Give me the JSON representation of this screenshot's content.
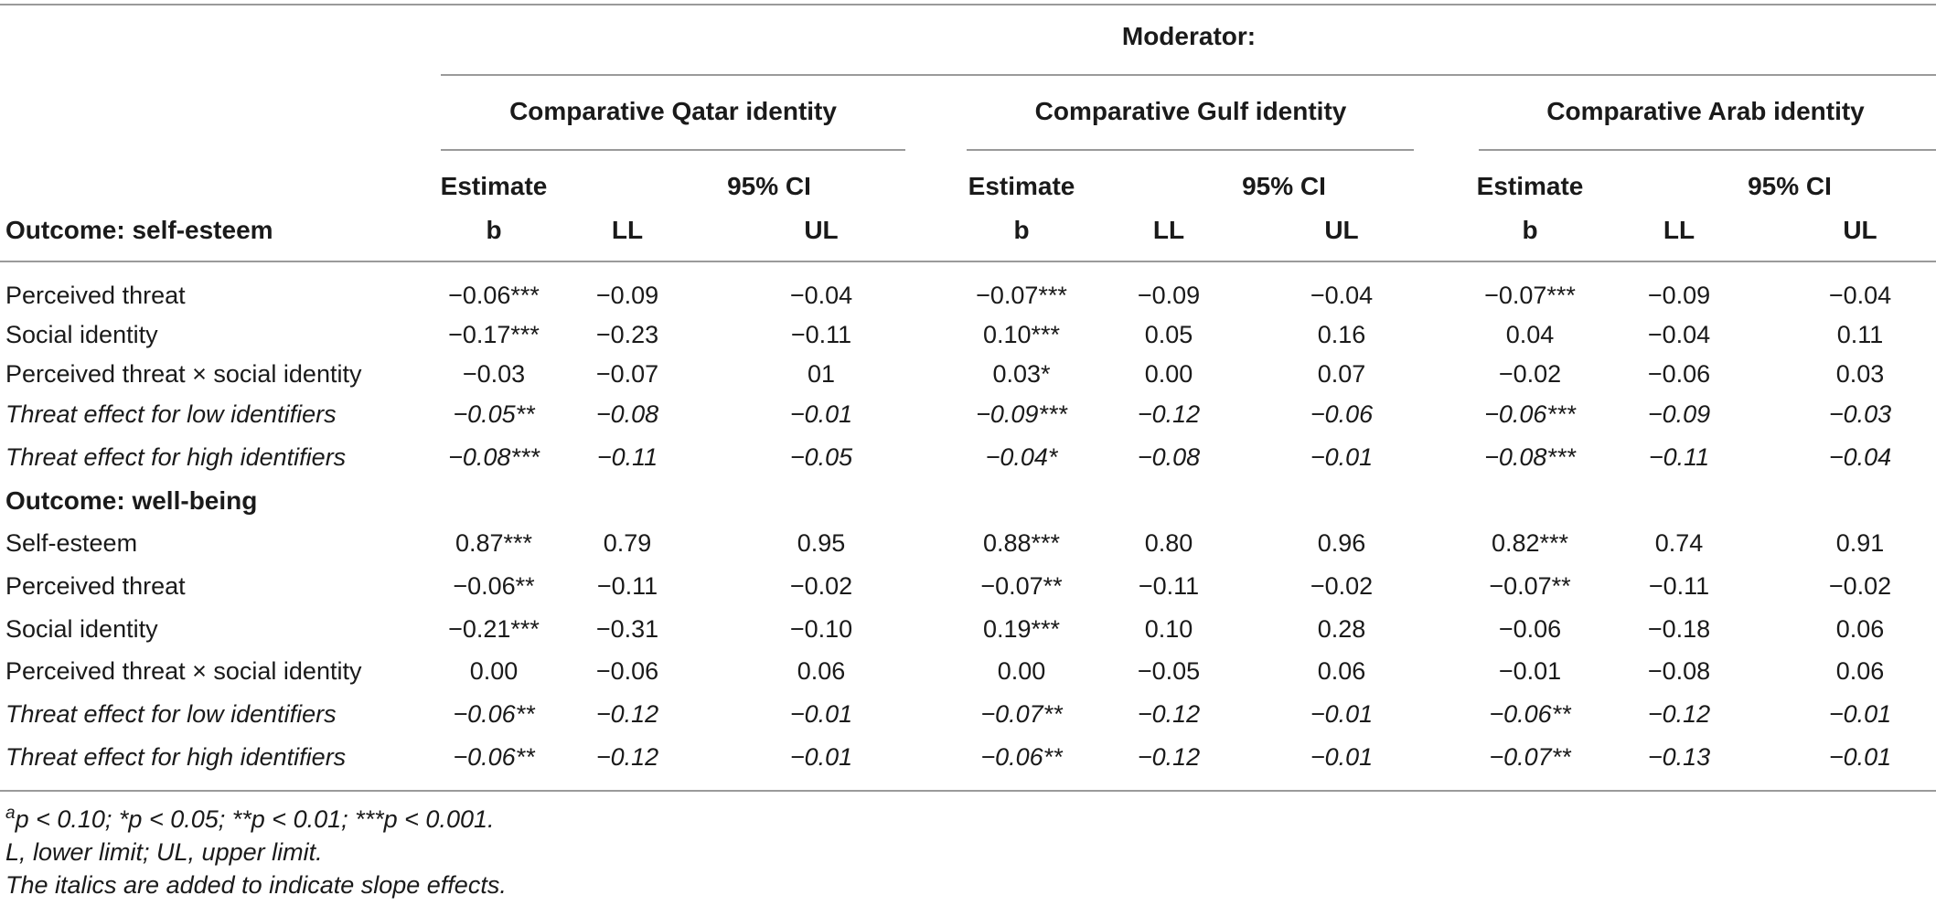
{
  "header": {
    "moderator_label": "Moderator:",
    "outcome1_label": "Outcome: self-esteem",
    "outcome2_label": "Outcome: well-being",
    "groups": [
      {
        "label": "Comparative Qatar identity",
        "estimate": "Estimate",
        "ci": "95% CI",
        "b": "b",
        "ll": "LL",
        "ul": "UL"
      },
      {
        "label": "Comparative Gulf identity",
        "estimate": "Estimate",
        "ci": "95% CI",
        "b": "b",
        "ll": "LL",
        "ul": "UL"
      },
      {
        "label": "Comparative Arab identity",
        "estimate": "Estimate",
        "ci": "95% CI",
        "b": "b",
        "ll": "LL",
        "ul": "UL"
      }
    ]
  },
  "self_esteem_rows": [
    {
      "label": "Perceived threat",
      "italic": false,
      "values": [
        "−0.06***",
        "−0.09",
        "−0.04",
        "−0.07***",
        "−0.09",
        "−0.04",
        "−0.07***",
        "−0.09",
        "−0.04"
      ]
    },
    {
      "label": "Social identity",
      "italic": false,
      "values": [
        "−0.17***",
        "−0.23",
        "−0.11",
        "0.10***",
        "0.05",
        "0.16",
        "0.04",
        "−0.04",
        "0.11"
      ]
    },
    {
      "label": "Perceived threat × social identity",
      "italic": false,
      "values": [
        "−0.03",
        "−0.07",
        "01",
        "0.03*",
        "0.00",
        "0.07",
        "−0.02",
        "−0.06",
        "0.03"
      ]
    },
    {
      "label": "Threat effect for low identifiers",
      "italic": true,
      "values": [
        "−0.05**",
        "−0.08",
        "−0.01",
        "−0.09***",
        "−0.12",
        "−0.06",
        "−0.06***",
        "−0.09",
        "−0.03"
      ]
    },
    {
      "label": "Threat effect for high identifiers",
      "italic": true,
      "values": [
        "−0.08***",
        "−0.11",
        "−0.05",
        "−0.04*",
        "−0.08",
        "−0.01",
        "−0.08***",
        "−0.11",
        "−0.04"
      ]
    }
  ],
  "well_being_rows": [
    {
      "label": "Self-esteem",
      "italic": false,
      "values": [
        "0.87***",
        "0.79",
        "0.95",
        "0.88***",
        "0.80",
        "0.96",
        "0.82***",
        "0.74",
        "0.91"
      ]
    },
    {
      "label": "Perceived threat",
      "italic": false,
      "values": [
        "−0.06**",
        "−0.11",
        "−0.02",
        "−0.07**",
        "−0.11",
        "−0.02",
        "−0.07**",
        "−0.11",
        "−0.02"
      ]
    },
    {
      "label": "Social identity",
      "italic": false,
      "values": [
        "−0.21***",
        "−0.31",
        "−0.10",
        "0.19***",
        "0.10",
        "0.28",
        "−0.06",
        "−0.18",
        "0.06"
      ]
    },
    {
      "label": "Perceived threat × social identity",
      "italic": false,
      "values": [
        "0.00",
        "−0.06",
        "0.06",
        "0.00",
        "−0.05",
        "0.06",
        "−0.01",
        "−0.08",
        "0.06"
      ]
    },
    {
      "label": "Threat effect for low identifiers",
      "italic": true,
      "values": [
        "−0.06**",
        "−0.12",
        "−0.01",
        "−0.07**",
        "−0.12",
        "−0.01",
        "−0.06**",
        "−0.12",
        "−0.01"
      ]
    },
    {
      "label": "Threat effect for high identifiers",
      "italic": true,
      "values": [
        "−0.06**",
        "−0.12",
        "−0.01",
        "−0.06**",
        "−0.12",
        "−0.01",
        "−0.07**",
        "−0.13",
        "−0.01"
      ]
    }
  ],
  "footnotes": {
    "sup": "a",
    "line1": "p < 0.10; *p < 0.05; **p < 0.01; ***p < 0.001.",
    "line2": "L, lower limit; UL, upper limit.",
    "line3": "The italics are added to indicate slope effects."
  }
}
